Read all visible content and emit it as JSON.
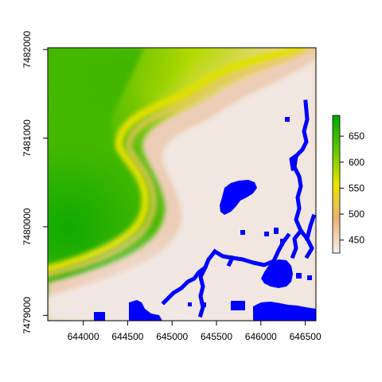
{
  "chart_data": {
    "type": "heatmap",
    "title": "",
    "xlabel": "",
    "ylabel": "",
    "xlim": [
      643600,
      646620
    ],
    "ylim": [
      7478940,
      7482020
    ],
    "x_ticks": [
      {
        "value": 644000,
        "label": "644000"
      },
      {
        "value": 644500,
        "label": "644500"
      },
      {
        "value": 645000,
        "label": "645000"
      },
      {
        "value": 645500,
        "label": "645500"
      },
      {
        "value": 646000,
        "label": "646000"
      },
      {
        "value": 646500,
        "label": "646500"
      }
    ],
    "y_ticks": [
      {
        "value": 7479000,
        "label": "7479000"
      },
      {
        "value": 7480000,
        "label": "7480000"
      },
      {
        "value": 7481000,
        "label": "7481000"
      },
      {
        "value": 7482000,
        "label": "7482000"
      }
    ],
    "legend": {
      "type": "colorbar",
      "placement": "right",
      "range": [
        425,
        690
      ],
      "ticks": [
        {
          "value": 450,
          "label": "450"
        },
        {
          "value": 500,
          "label": "500"
        },
        {
          "value": 550,
          "label": "550"
        },
        {
          "value": 600,
          "label": "600"
        },
        {
          "value": 650,
          "label": "650"
        }
      ],
      "colors": [
        "#f2f2f2",
        "#ecb176",
        "#e6e600",
        "#63c600",
        "#00a600"
      ]
    },
    "water_color": "#0000ff",
    "water_bodies": [
      {
        "name": "lake-center",
        "x_range": [
          645330,
          645700
        ],
        "y_range": [
          7480200,
          7480530
        ]
      },
      {
        "name": "lake-east",
        "x_range": [
          645880,
          646250
        ],
        "y_range": [
          7479490,
          7479650
        ]
      },
      {
        "name": "lake-southeast",
        "x_range": [
          645830,
          646600
        ],
        "y_range": [
          7478940,
          7479150
        ]
      },
      {
        "name": "lake-southwest",
        "x_range": [
          644520,
          644780
        ],
        "y_range": [
          7478940,
          7479150
        ]
      }
    ]
  }
}
